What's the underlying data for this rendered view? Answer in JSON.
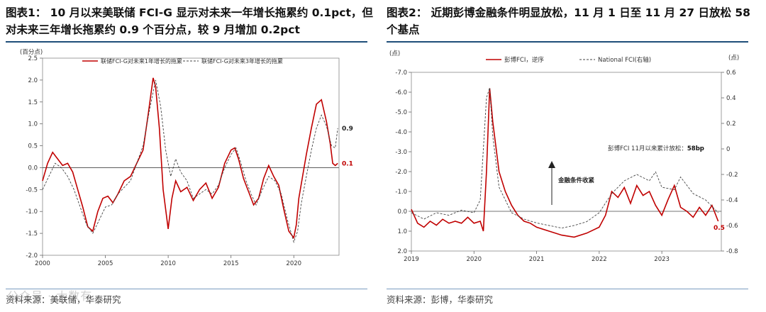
{
  "left": {
    "title": "图表1： 10 月以来美联储 FCI-G 显示对未来一年增长拖累约 0.1pct，但对未来三年增长拖累约 0.9 个百分点，较 9 月增加 0.2pct",
    "source": "资料来源：美联储，华泰研究",
    "watermark": "公众号 ·  大数有"
  },
  "right": {
    "title": "图表2： 近期彭博金融条件明显放松，11 月 1 日至 11 月 27 日放松 58 个基点",
    "source": "资料来源：彭博，华泰研究"
  },
  "chart_data": [
    {
      "type": "line",
      "ylabel": "(百分点)",
      "ylim": [
        -2.0,
        2.5
      ],
      "yticks": [
        "-2.0",
        "-1.5",
        "-1.0",
        "-0.5",
        "0.0",
        "0.5",
        "1.0",
        "1.5",
        "2.0",
        "2.5"
      ],
      "xlim": [
        2000,
        2023.6
      ],
      "xticks": [
        "2000",
        "2005",
        "2010",
        "2015",
        "2020"
      ],
      "legend_position": "top",
      "series": [
        {
          "name": "联储FCI-G对未来1年增长的拖累",
          "color": "#c00000",
          "style": "solid",
          "x": [
            2000,
            2000.4,
            2000.8,
            2001.2,
            2001.6,
            2002,
            2002.4,
            2002.8,
            2003.2,
            2003.6,
            2004,
            2004.4,
            2004.8,
            2005.2,
            2005.6,
            2006,
            2006.5,
            2007,
            2007.5,
            2008,
            2008.4,
            2008.8,
            2009.0,
            2009.3,
            2009.6,
            2010,
            2010.3,
            2010.6,
            2011,
            2011.5,
            2012,
            2012.5,
            2013,
            2013.5,
            2014,
            2014.5,
            2015,
            2015.3,
            2015.6,
            2016,
            2016.4,
            2016.8,
            2017.2,
            2017.6,
            2018,
            2018.4,
            2018.8,
            2019.2,
            2019.6,
            2020,
            2020.2,
            2020.4,
            2020.7,
            2021,
            2021.4,
            2021.8,
            2022.2,
            2022.6,
            2022.9,
            2023.1,
            2023.3,
            2023.5
          ],
          "y": [
            -0.3,
            0.1,
            0.35,
            0.2,
            0.05,
            0.1,
            -0.1,
            -0.5,
            -0.9,
            -1.35,
            -1.45,
            -1.0,
            -0.7,
            -0.65,
            -0.8,
            -0.6,
            -0.3,
            -0.2,
            0.1,
            0.4,
            1.2,
            2.05,
            1.85,
            0.9,
            -0.5,
            -1.4,
            -0.7,
            -0.3,
            -0.55,
            -0.45,
            -0.75,
            -0.5,
            -0.35,
            -0.7,
            -0.45,
            0.1,
            0.4,
            0.45,
            0.2,
            -0.25,
            -0.55,
            -0.85,
            -0.7,
            -0.25,
            0.05,
            -0.2,
            -0.4,
            -0.95,
            -1.45,
            -1.6,
            -1.3,
            -0.7,
            -0.2,
            0.3,
            0.9,
            1.45,
            1.55,
            1.05,
            0.55,
            0.1,
            0.05,
            0.1
          ]
        },
        {
          "name": "联储FCI-G对未来3年增长的拖累",
          "color": "#444444",
          "style": "dashed",
          "x": [
            2000,
            2000.5,
            2001,
            2001.5,
            2002,
            2002.5,
            2003,
            2003.5,
            2004,
            2004.5,
            2005,
            2005.5,
            2006,
            2006.5,
            2007,
            2007.5,
            2008,
            2008.5,
            2009,
            2009.4,
            2009.8,
            2010.2,
            2010.6,
            2011,
            2011.5,
            2012,
            2012.5,
            2013,
            2013.5,
            2014,
            2014.5,
            2015,
            2015.4,
            2015.8,
            2016.2,
            2016.6,
            2017,
            2017.5,
            2018,
            2018.5,
            2019,
            2019.5,
            2020,
            2020.3,
            2020.6,
            2021,
            2021.4,
            2021.8,
            2022.2,
            2022.6,
            2023,
            2023.3,
            2023.5
          ],
          "y": [
            -0.5,
            -0.2,
            0.1,
            0.0,
            -0.2,
            -0.5,
            -0.9,
            -1.3,
            -1.5,
            -1.2,
            -0.9,
            -0.85,
            -0.6,
            -0.45,
            -0.3,
            0.1,
            0.5,
            1.3,
            2.0,
            1.4,
            0.4,
            -0.2,
            0.2,
            -0.1,
            -0.3,
            -0.7,
            -0.6,
            -0.5,
            -0.6,
            -0.4,
            0.0,
            0.3,
            0.45,
            0.1,
            -0.3,
            -0.6,
            -0.85,
            -0.5,
            -0.2,
            -0.3,
            -0.6,
            -1.2,
            -1.7,
            -1.45,
            -0.8,
            -0.2,
            0.4,
            0.9,
            1.2,
            0.95,
            0.5,
            0.45,
            0.9
          ]
        }
      ],
      "annotations": [
        {
          "text": "0.9",
          "x": 2023.6,
          "y": 0.9,
          "color": "#222222"
        },
        {
          "text": "0.1",
          "x": 2023.6,
          "y": 0.1,
          "color": "#c00000"
        }
      ]
    },
    {
      "type": "line",
      "ylabel": "(点)",
      "y2label": "(点)",
      "ylim": [
        2.0,
        -7.0
      ],
      "yticks": [
        "-7.0",
        "-6.0",
        "-5.0",
        "-4.0",
        "-3.0",
        "-2.0",
        "-1.0",
        "0.0",
        "1.0",
        "2.0"
      ],
      "y2lim": [
        -0.8,
        0.6
      ],
      "y2ticks": [
        "0.6",
        "0.4",
        "0.2",
        "0",
        "-0.2",
        "-0.4",
        "-0.6",
        "-0.8"
      ],
      "xlim": [
        2019,
        2023.95
      ],
      "xticks": [
        "2019",
        "2020",
        "2021",
        "2022",
        "2023"
      ],
      "legend_position": "top",
      "series": [
        {
          "name": "彭博FCI，逆序",
          "color": "#c00000",
          "style": "solid",
          "axis": "left",
          "x": [
            2019,
            2019.1,
            2019.2,
            2019.3,
            2019.4,
            2019.5,
            2019.6,
            2019.7,
            2019.8,
            2019.9,
            2020.0,
            2020.1,
            2020.15,
            2020.2,
            2020.25,
            2020.3,
            2020.4,
            2020.5,
            2020.6,
            2020.7,
            2020.8,
            2020.9,
            2021.0,
            2021.2,
            2021.4,
            2021.6,
            2021.8,
            2022.0,
            2022.1,
            2022.2,
            2022.3,
            2022.4,
            2022.5,
            2022.6,
            2022.7,
            2022.8,
            2022.9,
            2023.0,
            2023.1,
            2023.2,
            2023.3,
            2023.4,
            2023.5,
            2023.6,
            2023.7,
            2023.8,
            2023.9
          ],
          "y": [
            -0.1,
            0.6,
            0.8,
            0.5,
            0.7,
            0.4,
            0.6,
            0.5,
            0.6,
            0.3,
            0.6,
            0.5,
            1.0,
            -2.0,
            -6.2,
            -4.5,
            -2.0,
            -1.0,
            -0.3,
            0.2,
            0.5,
            0.6,
            0.8,
            1.0,
            1.2,
            1.3,
            1.1,
            0.8,
            0.2,
            -1.0,
            -0.7,
            -1.2,
            -0.4,
            -1.3,
            -0.8,
            -1.0,
            -0.3,
            0.2,
            -0.6,
            -1.3,
            -0.2,
            0.0,
            0.3,
            -0.2,
            0.2,
            -0.3,
            0.5
          ]
        },
        {
          "name": "National FCI(右轴)",
          "color": "#444444",
          "style": "dashed",
          "axis": "right",
          "x": [
            2019,
            2019.2,
            2019.4,
            2019.6,
            2019.8,
            2020.0,
            2020.1,
            2020.2,
            2020.25,
            2020.3,
            2020.4,
            2020.6,
            2020.8,
            2021.0,
            2021.2,
            2021.4,
            2021.6,
            2021.8,
            2022.0,
            2022.2,
            2022.4,
            2022.6,
            2022.8,
            2022.9,
            2023.0,
            2023.2,
            2023.3,
            2023.5,
            2023.7,
            2023.9
          ],
          "y": [
            -0.5,
            -0.55,
            -0.5,
            -0.52,
            -0.48,
            -0.5,
            -0.4,
            0.4,
            0.48,
            0.1,
            -0.3,
            -0.5,
            -0.55,
            -0.58,
            -0.6,
            -0.62,
            -0.6,
            -0.57,
            -0.5,
            -0.35,
            -0.25,
            -0.2,
            -0.25,
            -0.18,
            -0.3,
            -0.32,
            -0.22,
            -0.35,
            -0.4,
            -0.5
          ]
        }
      ],
      "annotations": [
        {
          "text": "彭博FCI 11月以来累计放松：",
          "bold_text": "58bp"
        },
        {
          "text": "金融条件收紧"
        },
        {
          "text": "0.5",
          "color": "#c00000"
        }
      ]
    }
  ]
}
